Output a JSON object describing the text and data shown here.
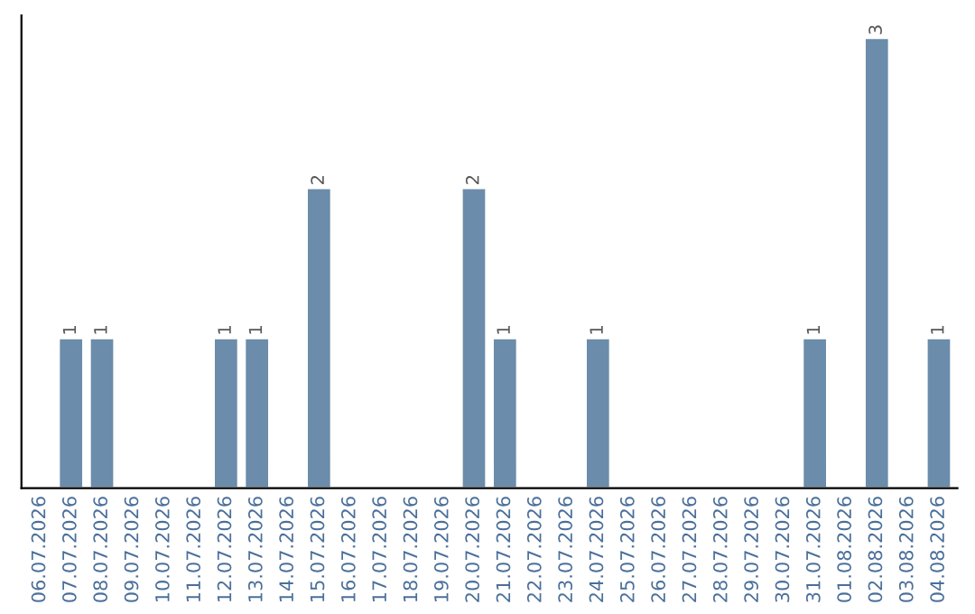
{
  "chart_data": {
    "type": "bar",
    "categories": [
      "06.07.2026",
      "07.07.2026",
      "08.07.2026",
      "09.07.2026",
      "10.07.2026",
      "11.07.2026",
      "12.07.2026",
      "13.07.2026",
      "14.07.2026",
      "15.07.2026",
      "16.07.2026",
      "17.07.2026",
      "18.07.2026",
      "19.07.2026",
      "20.07.2026",
      "21.07.2026",
      "22.07.2026",
      "23.07.2026",
      "24.07.2026",
      "25.07.2026",
      "26.07.2026",
      "27.07.2026",
      "28.07.2026",
      "29.07.2026",
      "30.07.2026",
      "31.07.2026",
      "01.08.2026",
      "02.08.2026",
      "03.08.2026",
      "04.08.2026"
    ],
    "values": [
      null,
      1,
      1,
      null,
      null,
      null,
      1,
      1,
      null,
      2,
      null,
      null,
      null,
      null,
      2,
      1,
      null,
      null,
      1,
      null,
      null,
      null,
      null,
      null,
      null,
      1,
      null,
      3,
      null,
      1
    ],
    "value_labels": [
      null,
      "1",
      "1",
      null,
      null,
      null,
      "1",
      "1",
      null,
      "2",
      null,
      null,
      null,
      null,
      "2",
      "1",
      null,
      null,
      "1",
      null,
      null,
      null,
      null,
      null,
      null,
      "1",
      null,
      "3",
      null,
      "1"
    ],
    "color": "#6b8caa",
    "grid": false,
    "legend": false
  }
}
